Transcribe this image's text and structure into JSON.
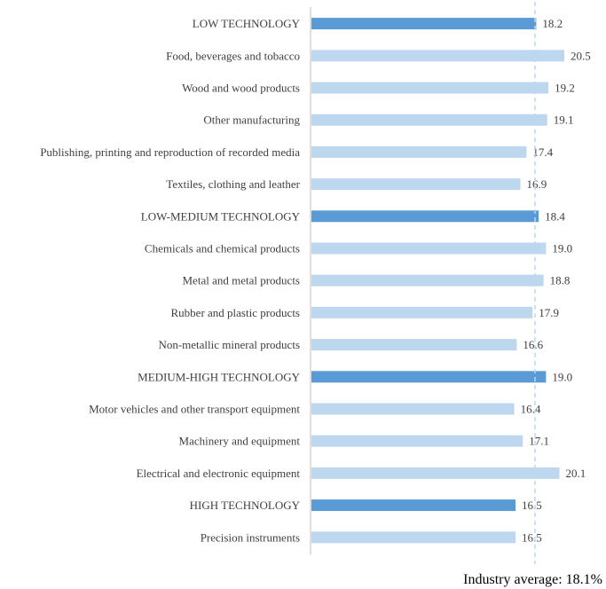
{
  "chart_data": {
    "type": "bar",
    "orientation": "horizontal",
    "title": "",
    "xlabel": "",
    "ylabel": "",
    "xlim": [
      0,
      20.5
    ],
    "grid": false,
    "legend": "none",
    "categories": [
      "LOW TECHNOLOGY",
      "Food, beverages and tobacco",
      "Wood and wood products",
      "Other manufacturing",
      "Publishing,  printing and reproduction of recorded media",
      "Textiles, clothing and leather",
      "LOW-MEDIUM TECHNOLOGY",
      "Chemicals and chemical products",
      "Metal and metal products",
      "Rubber and plastic products",
      "Non-metallic mineral products",
      "MEDIUM-HIGH TECHNOLOGY",
      "Motor vehicles and other transport equipment",
      "Machinery and equipment",
      "Electrical and electronic equipment",
      "HIGH TECHNOLOGY",
      "Precision instruments"
    ],
    "values": [
      18.2,
      20.5,
      19.2,
      19.1,
      17.4,
      16.9,
      18.4,
      19.0,
      18.8,
      17.9,
      16.6,
      19.0,
      16.4,
      17.1,
      20.1,
      16.5,
      16.5
    ],
    "value_labels": [
      "18.2",
      "20.5",
      "19.2",
      "19.1",
      "17.4",
      "16.9",
      "18.4",
      "19.0",
      "18.8",
      "17.9",
      "16.6",
      "19.0",
      "16.4",
      "17.1",
      "20.1",
      "16.5",
      "16.5"
    ],
    "group_totals": [
      "LOW TECHNOLOGY",
      "LOW-MEDIUM TECHNOLOGY",
      "MEDIUM-HIGH TECHNOLOGY",
      "HIGH TECHNOLOGY"
    ],
    "reference_line": {
      "value": 18.1,
      "label": "Industry average: 18.1%"
    },
    "colors": {
      "group": "#5b9bd5",
      "industry": "#bdd7ee",
      "reference": "#bdd7ee",
      "axis": "#bfbfbf",
      "text": "#404040"
    }
  }
}
